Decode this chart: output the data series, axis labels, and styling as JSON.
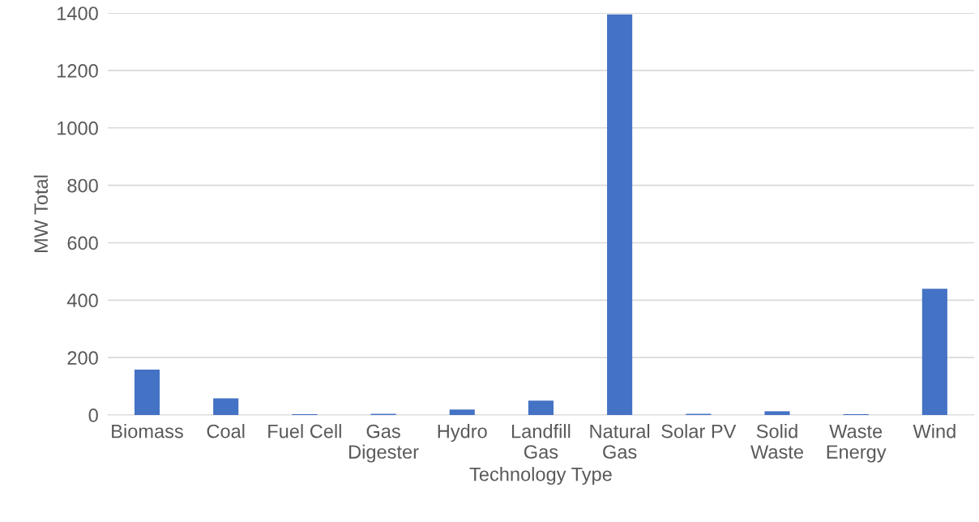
{
  "chart_data": {
    "type": "bar",
    "xlabel": "Technology Type",
    "ylabel": "MW Total",
    "categories": [
      "Biomass",
      "Coal",
      "Fuel Cell",
      "Gas\nDigester",
      "Hydro",
      "Landfill\nGas",
      "Natural\nGas",
      "Solar PV",
      "Solid\nWaste",
      "Waste\nEnergy",
      "Wind"
    ],
    "values": [
      158,
      58,
      3,
      4,
      19,
      50,
      1395,
      4,
      13,
      3,
      440
    ],
    "color": "#4472c4",
    "ylim": [
      0,
      1400
    ],
    "yticks": [
      0,
      200,
      400,
      600,
      800,
      1000,
      1200,
      1400
    ],
    "grid": "y",
    "legend": false
  }
}
